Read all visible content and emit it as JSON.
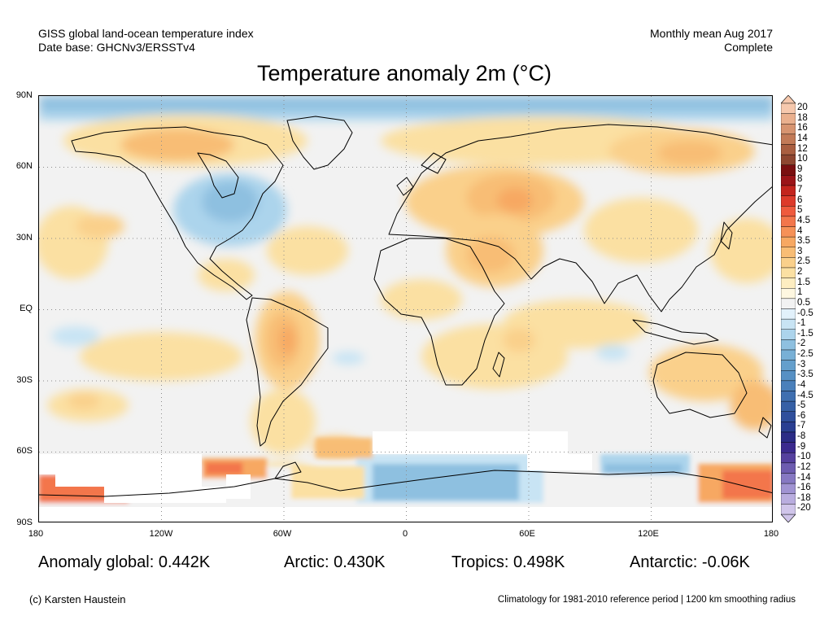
{
  "header": {
    "left_line1": "GISS global land-ocean temperature index",
    "left_line2": "Date base: GHCNv3/ERSSTv4",
    "right_line1": "Monthly mean Aug 2017",
    "right_line2": "Complete"
  },
  "title": "Temperature anomaly 2m (°C)",
  "map": {
    "lat_labels": [
      "90N",
      "60N",
      "30N",
      "EQ",
      "30S",
      "60S",
      "90S"
    ],
    "lon_labels": [
      "180",
      "120W",
      "60W",
      "0",
      "60E",
      "120E",
      "180"
    ]
  },
  "colorbar": {
    "labels": [
      "20",
      "18",
      "16",
      "14",
      "12",
      "10",
      "9",
      "8",
      "7",
      "6",
      "5",
      "4.5",
      "4",
      "3.5",
      "3",
      "2.5",
      "2",
      "1.5",
      "1",
      "0.5",
      "-0.5",
      "-1",
      "-1.5",
      "-2",
      "-2.5",
      "-3",
      "-3.5",
      "-4",
      "-4.5",
      "-5",
      "-6",
      "-7",
      "-8",
      "-9",
      "-10",
      "-12",
      "-14",
      "-16",
      "-18",
      "-20"
    ],
    "colors": [
      "#f6c8ad",
      "#eab08e",
      "#d79470",
      "#c27a57",
      "#a95e40",
      "#8e4630",
      "#7a0f10",
      "#9b1418",
      "#c3241d",
      "#dd3a2a",
      "#ef5a3d",
      "#f3764b",
      "#f69157",
      "#f7a862",
      "#f8bd75",
      "#fad08b",
      "#fbe0a2",
      "#fdedc1",
      "#fef7e0",
      "#f2f2f2",
      "#e2f1fb",
      "#c8e4f4",
      "#acd4ec",
      "#8ec0e0",
      "#78b0d6",
      "#649fcc",
      "#5690c4",
      "#4a80bb",
      "#3f6fb0",
      "#3660a6",
      "#2f4f9c",
      "#2a3f92",
      "#2b2c86",
      "#3b2a8e",
      "#55409e",
      "#6d5cb0",
      "#8678c2",
      "#a093d2",
      "#b9addf",
      "#d0c5ea"
    ]
  },
  "stats": {
    "global": "Anomaly global: 0.442K",
    "arctic": "Arctic: 0.430K",
    "tropics": "Tropics: 0.498K",
    "antarctic": "Antarctic: -0.06K"
  },
  "footer": {
    "credit": "(c) Karsten Haustein",
    "note": "Climatology for 1981-2010 reference period | 1200 km smoothing radius"
  }
}
